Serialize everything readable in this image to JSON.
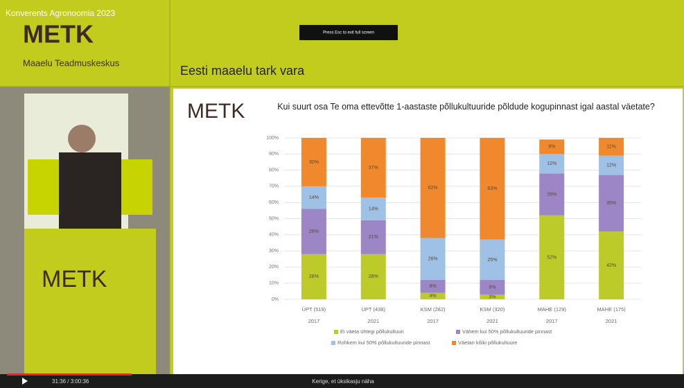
{
  "header": {
    "event": "Konverents Agronoomia 2023",
    "logo": "METK",
    "logo_sub": "Maaelu Teadmuskeskus",
    "slide_title": "Eesti maaelu tark vara",
    "fullscreen_hint": "Press Esc to exit full screen"
  },
  "player": {
    "time": "31:36 / 3:00:36",
    "hint": "Kerige, et üksikasju näha"
  },
  "chart_data": {
    "type": "stacked-bar",
    "title": "Kui suurt osa Te oma ettevõtte 1-aastaste põllukultuuride  põldude kogupinnast igal aastal väetate?",
    "categories": [
      "ÜPT (519)",
      "ÜPT (438)",
      "KSM (282)",
      "KSM (320)",
      "MAHE (129)",
      "MAHE (175)"
    ],
    "category_years": [
      "2017",
      "2021",
      "2017",
      "2021",
      "2017",
      "2021"
    ],
    "ylim": [
      0,
      100
    ],
    "yticks": [
      {
        "value": 0,
        "label": "0%"
      },
      {
        "value": 10,
        "label": "10%"
      },
      {
        "value": 20,
        "label": "20%"
      },
      {
        "value": 30,
        "label": "30%"
      },
      {
        "value": 40,
        "label": "40%"
      },
      {
        "value": 50,
        "label": "50%"
      },
      {
        "value": 60,
        "label": "60%"
      },
      {
        "value": 70,
        "label": "70%"
      },
      {
        "value": 80,
        "label": "80%"
      },
      {
        "value": 90,
        "label": "90%"
      },
      {
        "value": 100,
        "label": "100%"
      }
    ],
    "grid": true,
    "series": [
      {
        "name": "Ei väeta ühtegi põllukultuuri",
        "color": "#bccb2a",
        "values": [
          28,
          28,
          4,
          3,
          52,
          42
        ],
        "value_labels": [
          "28%",
          "28%",
          "4%",
          "3%",
          "52%",
          "42%"
        ]
      },
      {
        "name": "Vähem kui 50% põllukultuuride pinnast",
        "color": "#9d86c6",
        "values": [
          28,
          21,
          8,
          9,
          26,
          35
        ],
        "value_labels": [
          "28%",
          "21%",
          "8%",
          "9%",
          "26%",
          "35%"
        ]
      },
      {
        "name": "Rohkem kui 50% põllukultuuride pinnast",
        "color": "#9fc1e6",
        "values": [
          14,
          14,
          26,
          25,
          12,
          12
        ],
        "value_labels": [
          "14%",
          "14%",
          "26%",
          "25%",
          "12%",
          "12%"
        ]
      },
      {
        "name": "Väetan kõiki põllukultuure",
        "color": "#f0882e",
        "values": [
          30,
          37,
          62,
          63,
          9,
          11
        ],
        "value_labels": [
          "30%",
          "37%",
          "62%",
          "63%",
          "9%",
          "11%"
        ]
      }
    ]
  }
}
